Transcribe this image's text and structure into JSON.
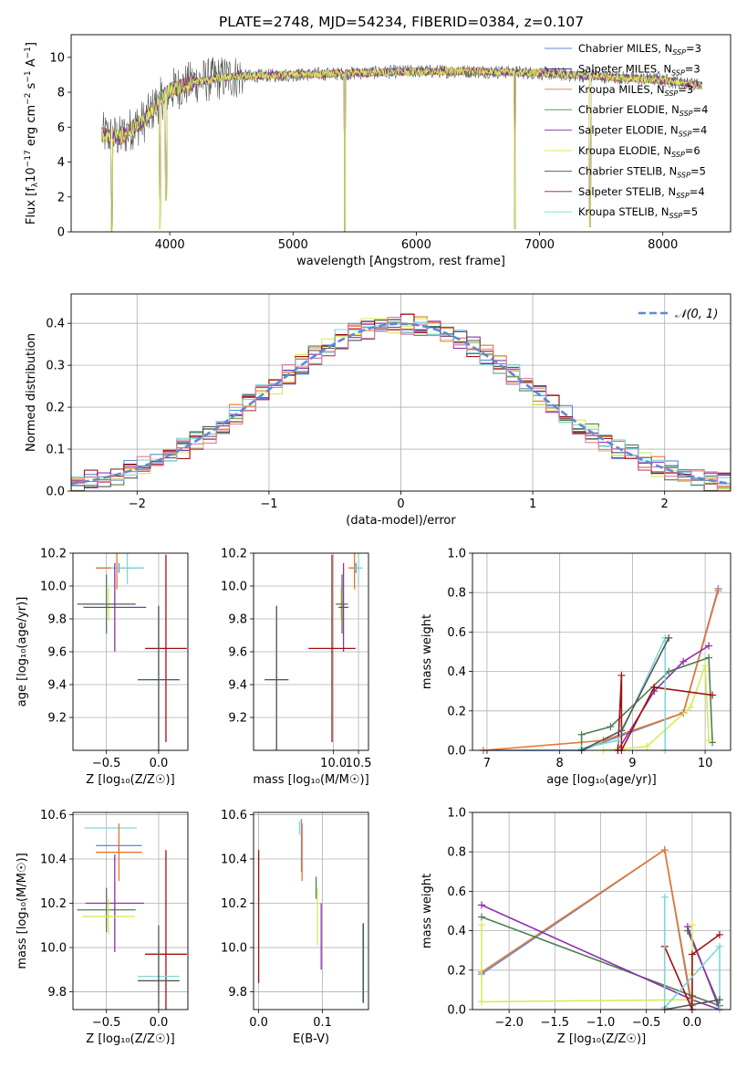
{
  "figure_title": "PLATE=2748, MJD=54234, FIBERID=0384, z=0.107",
  "models": [
    {
      "name": "Chabrier MILES",
      "nssp": "3",
      "color": "#5b8bd6"
    },
    {
      "name": "Salpeter MILES",
      "nssp": "3",
      "color": "#1f2f66"
    },
    {
      "name": "Kroupa MILES",
      "nssp": "3",
      "color": "#e8772b"
    },
    {
      "name": "Chabrier ELODIE",
      "nssp": "4",
      "color": "#4f7f4f"
    },
    {
      "name": "Salpeter ELODIE",
      "nssp": "4",
      "color": "#8e2fb0"
    },
    {
      "name": "Kroupa ELODIE",
      "nssp": "6",
      "color": "#d8ea5a"
    },
    {
      "name": "Chabrier STELIB",
      "nssp": "5",
      "color": "#555555"
    },
    {
      "name": "Salpeter STELIB",
      "nssp": "4",
      "color": "#a01010"
    },
    {
      "name": "Kroupa STELIB",
      "nssp": "5",
      "color": "#7fd6d6"
    }
  ],
  "chart_data": [
    {
      "id": "spectrum",
      "type": "line",
      "xlabel": "wavelength [Angstrom, rest frame]",
      "ylabel_main": "Flux [f",
      "ylabel_sub": "λ",
      "ylabel_mid": "10",
      "ylabel_sup1": "−17",
      "ylabel_tail": " erg cm",
      "ylabel_sup2": "−2",
      "ylabel_tail2": " s",
      "ylabel_sup3": "−1",
      "ylabel_tail3": " A",
      "ylabel_sup4": "−1",
      "ylabel_end": "]",
      "xlim": [
        3200,
        8550
      ],
      "ylim": [
        0,
        11.3
      ],
      "xticks": [
        "4000",
        "5000",
        "6000",
        "7000",
        "8000"
      ],
      "yticks": [
        "0",
        "2",
        "4",
        "6",
        "8",
        "10"
      ],
      "continuum": [
        [
          3450,
          5.6
        ],
        [
          3600,
          5.4
        ],
        [
          3700,
          6.0
        ],
        [
          3800,
          6.4
        ],
        [
          3900,
          7.4
        ],
        [
          4000,
          8.1
        ],
        [
          4200,
          8.6
        ],
        [
          4500,
          8.9
        ],
        [
          5000,
          9.0
        ],
        [
          5500,
          9.1
        ],
        [
          6000,
          9.2
        ],
        [
          6500,
          9.2
        ],
        [
          7000,
          9.1
        ],
        [
          7500,
          8.9
        ],
        [
          8000,
          8.7
        ],
        [
          8300,
          8.4
        ]
      ],
      "dips": [
        [
          3920,
          0.2
        ],
        [
          3970,
          1.8
        ],
        [
          5420,
          0.0
        ],
        [
          6800,
          0.2
        ],
        [
          7410,
          0.3
        ],
        [
          3530,
          0.0
        ]
      ]
    },
    {
      "id": "residuals",
      "type": "area",
      "xlabel": "(data-model)/error",
      "ylabel": "Normed distribution",
      "xlim": [
        -2.5,
        2.5
      ],
      "ylim": [
        0,
        0.47
      ],
      "xticks": [
        "−2",
        "−1",
        "0",
        "1",
        "2"
      ],
      "yticks": [
        "0.0",
        "0.1",
        "0.2",
        "0.3",
        "0.4"
      ],
      "grid": true,
      "legend_label": "𝒩(0, 1)",
      "legend_position": "upper right",
      "bin_width": 0.1
    },
    {
      "id": "age_vs_Z",
      "type": "scatter",
      "xlabel": "Z [log₁₀(Z/Z☉)]",
      "ylabel": "age  [log₁₀(age/yr)]",
      "xlim": [
        -0.82,
        0.28
      ],
      "ylim": [
        9.0,
        10.2
      ],
      "xticks": [
        "−0.5",
        "0.0"
      ],
      "yticks": [
        "9.2",
        "9.4",
        "9.6",
        "9.8",
        "10.0",
        "10.2"
      ],
      "points": [
        {
          "m": 0,
          "x": -0.38,
          "y": 10.11,
          "ex": 0.22,
          "ey": 0.03
        },
        {
          "m": 2,
          "x": -0.4,
          "y": 10.11,
          "ex": 0.2,
          "ey": 0.13
        },
        {
          "m": 8,
          "x": -0.3,
          "y": 10.11,
          "ex": 0.16,
          "ey": 0.1
        },
        {
          "m": 5,
          "x": -0.48,
          "y": 9.89,
          "ex": 0.26,
          "ey": 0.1
        },
        {
          "m": 3,
          "x": -0.5,
          "y": 9.89,
          "ex": 0.28,
          "ey": 0.18
        },
        {
          "m": 4,
          "x": -0.42,
          "y": 9.87,
          "ex": 0.3,
          "ey": 0.27
        },
        {
          "m": 7,
          "x": 0.07,
          "y": 9.62,
          "ex": 0.2,
          "ey": 0.57
        },
        {
          "m": 8,
          "x": 0.0,
          "y": 9.43,
          "ex": 0.2,
          "ey": 0.45
        },
        {
          "m": 6,
          "x": 0.0,
          "y": 9.43,
          "ex": 0.2,
          "ey": 0.45
        }
      ]
    },
    {
      "id": "age_vs_mass",
      "type": "scatter",
      "xlabel": "mass [log₁₀(M/M☉)]",
      "ylabel": "",
      "xlim": [
        8.4,
        10.7
      ],
      "ylim": [
        9.0,
        10.2
      ],
      "xticks": [
        "10.0",
        "10.5"
      ],
      "yticks": [
        "9.2",
        "9.4",
        "9.6",
        "9.8",
        "10.0",
        "10.2"
      ],
      "points": [
        {
          "m": 0,
          "x": 10.45,
          "y": 10.11,
          "ex": 0.12,
          "ey": 0.03
        },
        {
          "m": 2,
          "x": 10.42,
          "y": 10.11,
          "ex": 0.12,
          "ey": 0.13
        },
        {
          "m": 8,
          "x": 10.5,
          "y": 10.11,
          "ex": 0.08,
          "ey": 0.1
        },
        {
          "m": 5,
          "x": 10.15,
          "y": 9.89,
          "ex": 0.12,
          "ey": 0.1
        },
        {
          "m": 3,
          "x": 10.17,
          "y": 9.89,
          "ex": 0.12,
          "ey": 0.18
        },
        {
          "m": 4,
          "x": 10.2,
          "y": 9.87,
          "ex": 0.1,
          "ey": 0.27
        },
        {
          "m": 7,
          "x": 9.97,
          "y": 9.62,
          "ex": 0.47,
          "ey": 0.57
        },
        {
          "m": 8,
          "x": 8.86,
          "y": 9.43,
          "ex": 0.24,
          "ey": 0.45
        },
        {
          "m": 6,
          "x": 8.86,
          "y": 9.43,
          "ex": 0.24,
          "ey": 0.45
        }
      ]
    },
    {
      "id": "weight_vs_age",
      "type": "line",
      "xlabel": "age  [log₁₀(age/yr)]",
      "ylabel": "mass weight",
      "xlim": [
        6.8,
        10.35
      ],
      "ylim": [
        0.0,
        1.0
      ],
      "xticks": [
        "7",
        "8",
        "9",
        "10"
      ],
      "yticks": [
        "0.0",
        "0.2",
        "0.4",
        "0.6",
        "0.8",
        "1.0"
      ],
      "grid": true,
      "series": [
        {
          "m": 0,
          "points": [
            [
              6.95,
              0.0
            ],
            [
              8.3,
              0.0
            ],
            [
              9.7,
              0.19
            ],
            [
              10.18,
              0.82
            ]
          ]
        },
        {
          "m": 2,
          "points": [
            [
              6.95,
              0.0
            ],
            [
              8.6,
              0.05
            ],
            [
              9.7,
              0.19
            ],
            [
              10.18,
              0.81
            ]
          ]
        },
        {
          "m": 3,
          "points": [
            [
              8.3,
              0.0
            ],
            [
              8.3,
              0.08
            ],
            [
              8.7,
              0.12
            ],
            [
              9.5,
              0.4
            ],
            [
              10.05,
              0.47
            ],
            [
              10.1,
              0.04
            ]
          ]
        },
        {
          "m": 4,
          "points": [
            [
              8.8,
              0.0
            ],
            [
              9.3,
              0.3
            ],
            [
              9.7,
              0.45
            ],
            [
              10.05,
              0.53
            ]
          ]
        },
        {
          "m": 5,
          "points": [
            [
              8.6,
              0.0
            ],
            [
              9.2,
              0.02
            ],
            [
              9.8,
              0.22
            ],
            [
              10.0,
              0.43
            ],
            [
              10.05,
              0.05
            ]
          ]
        },
        {
          "m": 7,
          "points": [
            [
              8.8,
              0.0
            ],
            [
              8.85,
              0.38
            ],
            [
              8.85,
              0.0
            ],
            [
              9.3,
              0.32
            ],
            [
              10.1,
              0.28
            ]
          ]
        },
        {
          "m": 8,
          "points": [
            [
              8.3,
              0.01
            ],
            [
              8.8,
              0.05
            ],
            [
              9.45,
              0.57
            ],
            [
              9.45,
              0.0
            ]
          ]
        },
        {
          "m": 6,
          "points": [
            [
              8.3,
              0.0
            ],
            [
              8.85,
              0.1
            ],
            [
              9.5,
              0.57
            ]
          ]
        }
      ]
    },
    {
      "id": "mass_vs_Z",
      "type": "scatter",
      "xlabel": "Z [log₁₀(Z/Z☉)]",
      "ylabel": "mass [log₁₀(M/M☉)]",
      "xlim": [
        -0.82,
        0.28
      ],
      "ylim": [
        9.72,
        10.61
      ],
      "xticks": [
        "−0.5",
        "0.0"
      ],
      "yticks": [
        "9.8",
        "10.0",
        "10.2",
        "10.4",
        "10.6"
      ],
      "points": [
        {
          "m": 8,
          "x": -0.46,
          "y": 10.54,
          "ex": 0.25,
          "ey": 0.0
        },
        {
          "m": 0,
          "x": -0.38,
          "y": 10.46,
          "ex": 0.22,
          "ey": 0.03
        },
        {
          "m": 2,
          "x": -0.38,
          "y": 10.43,
          "ex": 0.22,
          "ey": 0.13
        },
        {
          "m": 3,
          "x": -0.5,
          "y": 10.17,
          "ex": 0.28,
          "ey": 0.1
        },
        {
          "m": 4,
          "x": -0.42,
          "y": 10.2,
          "ex": 0.28,
          "ey": 0.22
        },
        {
          "m": 5,
          "x": -0.48,
          "y": 10.14,
          "ex": 0.25,
          "ey": 0.08
        },
        {
          "m": 7,
          "x": 0.07,
          "y": 9.97,
          "ex": 0.2,
          "ey": 0.47
        },
        {
          "m": 8,
          "x": 0.0,
          "y": 9.87,
          "ex": 0.2,
          "ey": 0.12
        },
        {
          "m": 6,
          "x": 0.0,
          "y": 9.85,
          "ex": 0.2,
          "ey": 0.25
        }
      ]
    },
    {
      "id": "mass_vs_ebv",
      "type": "scatter",
      "xlabel": "E(B-V)",
      "ylabel": "",
      "xlim": [
        -0.008,
        0.172
      ],
      "ylim": [
        9.72,
        10.61
      ],
      "xticks": [
        "0.0",
        "0.1"
      ],
      "yticks": [
        "9.8",
        "10.0",
        "10.2",
        "10.4",
        "10.6"
      ],
      "points": [
        {
          "m": 8,
          "x": 0.064,
          "y": 10.54,
          "ex": 0.0,
          "ey": 0.03
        },
        {
          "m": 0,
          "x": 0.067,
          "y": 10.46,
          "ex": 0.0,
          "ey": 0.12
        },
        {
          "m": 2,
          "x": 0.068,
          "y": 10.43,
          "ex": 0.0,
          "ey": 0.13
        },
        {
          "m": 3,
          "x": 0.09,
          "y": 10.27,
          "ex": 0.0,
          "ey": 0.05
        },
        {
          "m": 5,
          "x": 0.092,
          "y": 10.14,
          "ex": 0.0,
          "ey": 0.13
        },
        {
          "m": 4,
          "x": 0.098,
          "y": 10.05,
          "ex": 0.0,
          "ey": 0.15
        },
        {
          "m": 7,
          "x": 0.0,
          "y": 10.14,
          "ex": 0.0,
          "ey": 0.3
        },
        {
          "m": 8,
          "x": 0.163,
          "y": 9.93,
          "ex": 0.0,
          "ey": 0.18
        },
        {
          "m": 6,
          "x": 0.164,
          "y": 9.93,
          "ex": 0.0,
          "ey": 0.18
        }
      ]
    },
    {
      "id": "weight_vs_Z",
      "type": "line",
      "xlabel": "Z [log₁₀(Z/Z☉)]",
      "ylabel": "mass weight",
      "xlim": [
        -2.4,
        0.42
      ],
      "ylim": [
        0.0,
        1.0
      ],
      "xticks": [
        "−2.0",
        "−1.5",
        "−1.0",
        "−0.5",
        "0.0"
      ],
      "yticks": [
        "0.0",
        "0.2",
        "0.4",
        "0.6",
        "0.8",
        "1.0"
      ],
      "grid": true,
      "series": [
        {
          "m": 0,
          "points": [
            [
              -2.3,
              0.18
            ],
            [
              -0.3,
              0.81
            ],
            [
              0.0,
              0.0
            ]
          ]
        },
        {
          "m": 2,
          "points": [
            [
              -2.3,
              0.19
            ],
            [
              -0.3,
              0.81
            ],
            [
              0.0,
              0.02
            ]
          ]
        },
        {
          "m": 3,
          "points": [
            [
              -2.3,
              0.47
            ],
            [
              0.0,
              0.07
            ],
            [
              0.3,
              0.02
            ],
            [
              -0.05,
              0.4
            ]
          ]
        },
        {
          "m": 4,
          "points": [
            [
              -2.3,
              0.53
            ],
            [
              0.0,
              0.05
            ],
            [
              0.3,
              0.0
            ],
            [
              -0.05,
              0.42
            ]
          ]
        },
        {
          "m": 5,
          "points": [
            [
              -2.3,
              0.04
            ],
            [
              -2.3,
              0.43
            ],
            [
              -2.3,
              0.04
            ],
            [
              0.0,
              0.05
            ],
            [
              0.0,
              0.43
            ],
            [
              0.0,
              0.18
            ]
          ]
        },
        {
          "m": 7,
          "points": [
            [
              -0.3,
              0.32
            ],
            [
              0.0,
              0.0
            ],
            [
              0.0,
              0.28
            ],
            [
              0.3,
              0.38
            ]
          ]
        },
        {
          "m": 8,
          "points": [
            [
              -0.3,
              0.57
            ],
            [
              -0.3,
              0.01
            ],
            [
              0.3,
              0.32
            ],
            [
              0.3,
              0.0
            ]
          ]
        },
        {
          "m": 6,
          "points": [
            [
              -0.3,
              0.0
            ],
            [
              0.3,
              0.05
            ]
          ]
        }
      ]
    }
  ]
}
